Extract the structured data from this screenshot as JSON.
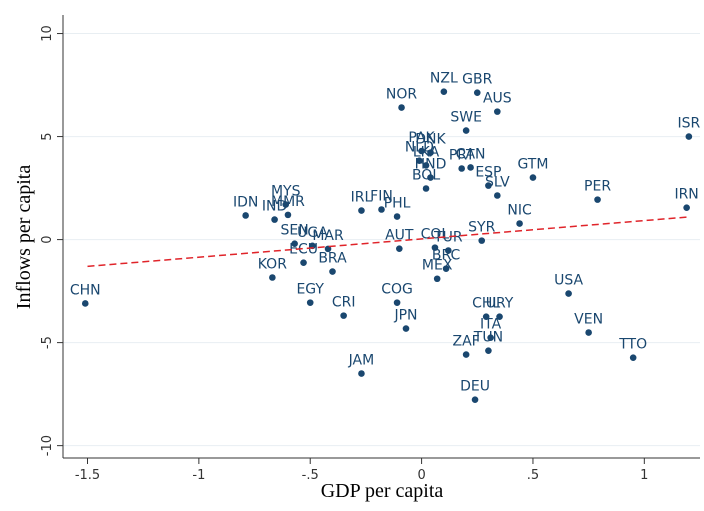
{
  "chart_data": {
    "type": "scatter",
    "xlabel": "GDP per capita",
    "ylabel": "Inflows per capita",
    "xlim": [
      -1.61,
      1.25
    ],
    "ylim": [
      -10.6,
      10.9
    ],
    "xticks": [
      -1.5,
      -1,
      {
        "value": -0.5,
        "label": "-.5"
      },
      0,
      {
        "value": 0.5,
        "label": ".5"
      },
      1
    ],
    "yticks": [
      10,
      5,
      0,
      -5,
      -10
    ],
    "grid": true,
    "series": [
      {
        "color": "#1a476f",
        "point_labels": [
          "CHN",
          "IDN",
          "IND",
          "MMR",
          "MYS",
          "SEN",
          "UGA",
          "MAR",
          "ECU",
          "KOR",
          "BRA",
          "EGY",
          "CRI",
          "COG",
          "JPN",
          "JAM",
          "IRL",
          "FIN",
          "PHL",
          "AUT",
          "NOR",
          "NZL",
          "GBR",
          "AUS",
          "SWE",
          "NLD",
          "DNK",
          "PAK",
          "LKA",
          "PRT",
          "CAN",
          "HND",
          "BOL",
          "ESP",
          "SLV",
          "GTM",
          "PER",
          "IRN",
          "ISR",
          "NIC",
          "SYR",
          "COL",
          "TUR",
          "MEX",
          "BRC",
          "CHL",
          "URY",
          "ZAF",
          "ITA",
          "TUN",
          "DEU",
          "USA",
          "VEN",
          "TTO"
        ],
        "x": [
          -1.51,
          -0.79,
          -0.66,
          -0.6,
          -0.61,
          -0.57,
          -0.49,
          -0.42,
          -0.53,
          -0.67,
          -0.4,
          -0.5,
          -0.35,
          -0.11,
          -0.07,
          -0.27,
          -0.27,
          -0.18,
          -0.11,
          -0.1,
          -0.09,
          0.1,
          0.25,
          0.34,
          0.2,
          -0.01,
          0.04,
          0.0,
          0.02,
          0.18,
          0.22,
          0.04,
          0.02,
          0.3,
          0.34,
          0.5,
          0.79,
          1.19,
          1.2,
          0.44,
          0.27,
          0.06,
          0.12,
          0.07,
          0.11,
          0.29,
          0.35,
          0.2,
          0.31,
          0.3,
          0.24,
          0.66,
          0.75,
          0.95
        ],
        "values": [
          -3.1,
          1.17,
          0.97,
          1.2,
          1.7,
          -0.2,
          -0.3,
          -0.45,
          -1.12,
          -1.84,
          -1.55,
          -3.06,
          -3.69,
          -3.06,
          -4.32,
          -6.5,
          1.41,
          1.46,
          1.12,
          -0.44,
          6.41,
          7.18,
          7.13,
          6.21,
          5.29,
          3.83,
          4.22,
          4.3,
          3.6,
          3.45,
          3.5,
          3.01,
          2.48,
          2.62,
          2.14,
          3.01,
          1.94,
          1.55,
          5.0,
          0.78,
          -0.05,
          -0.39,
          -0.53,
          -1.9,
          -1.41,
          -3.74,
          -3.74,
          -5.58,
          -4.76,
          -5.39,
          -7.77,
          -2.62,
          -4.51,
          -5.73
        ]
      }
    ],
    "fit": {
      "color": "#e0242a",
      "x": [
        -1.5,
        1.2
      ],
      "values": [
        -1.3,
        1.1
      ]
    }
  }
}
